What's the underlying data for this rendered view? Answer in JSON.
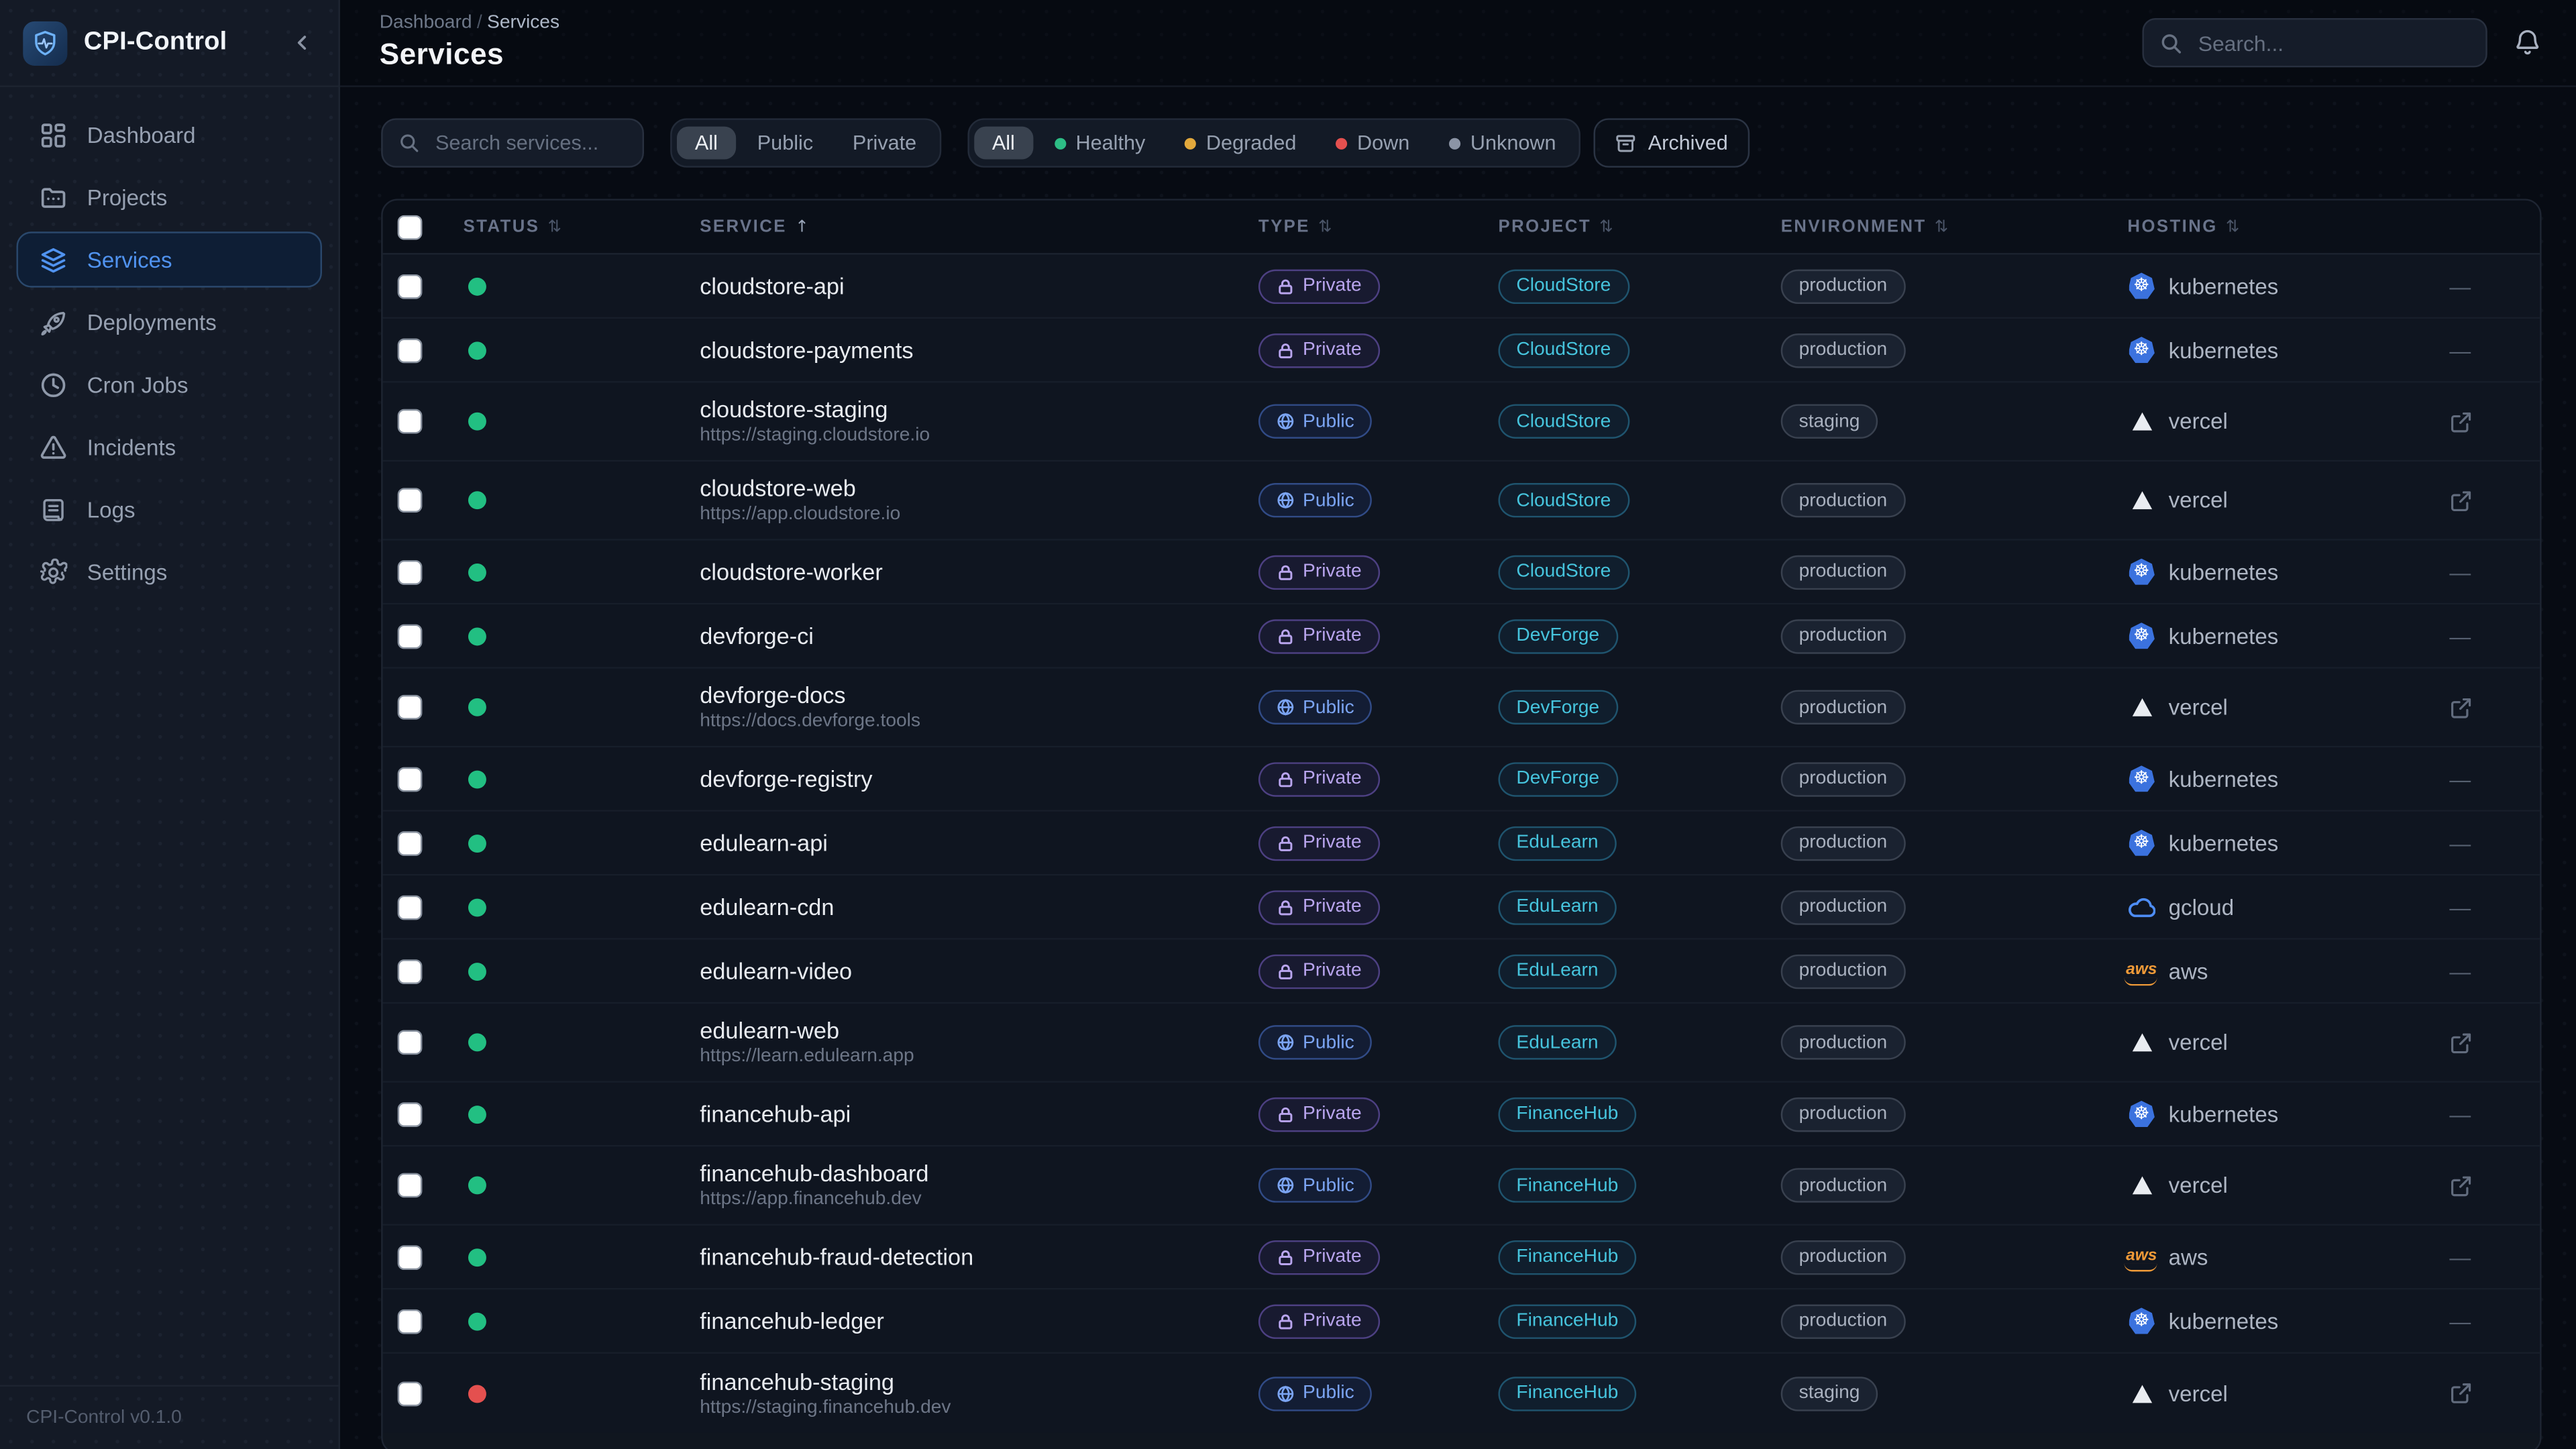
{
  "brand": "CPI-Control",
  "sidebar": {
    "items": [
      {
        "label": "Dashboard",
        "icon": "dashboard-icon",
        "active": false
      },
      {
        "label": "Projects",
        "icon": "projects-icon",
        "active": false
      },
      {
        "label": "Services",
        "icon": "services-icon",
        "active": true
      },
      {
        "label": "Deployments",
        "icon": "deployments-icon",
        "active": false
      },
      {
        "label": "Cron Jobs",
        "icon": "cron-jobs-icon",
        "active": false
      },
      {
        "label": "Incidents",
        "icon": "incidents-icon",
        "active": false
      },
      {
        "label": "Logs",
        "icon": "logs-icon",
        "active": false
      },
      {
        "label": "Settings",
        "icon": "settings-icon",
        "active": false
      }
    ],
    "version": "CPI-Control v0.1.0"
  },
  "header": {
    "breadcrumb": {
      "parent": "Dashboard",
      "separator": "/",
      "current": "Services"
    },
    "title": "Services",
    "search_placeholder": "Search..."
  },
  "filters": {
    "search_placeholder": "Search services...",
    "visibility": {
      "options": [
        "All",
        "Public",
        "Private"
      ],
      "selected": "All"
    },
    "status": {
      "options": [
        {
          "label": "All",
          "dot": null
        },
        {
          "label": "Healthy",
          "dot": "#2dbd85"
        },
        {
          "label": "Degraded",
          "dot": "#e3a93c"
        },
        {
          "label": "Down",
          "dot": "#e4504f"
        },
        {
          "label": "Unknown",
          "dot": "#8b94a5"
        }
      ],
      "selected": "All"
    },
    "archived_label": "Archived"
  },
  "table": {
    "columns": [
      {
        "label": "STATUS",
        "sort": "both"
      },
      {
        "label": "SERVICE",
        "sort": "asc"
      },
      {
        "label": "TYPE",
        "sort": "both"
      },
      {
        "label": "PROJECT",
        "sort": "both"
      },
      {
        "label": "ENVIRONMENT",
        "sort": "both"
      },
      {
        "label": "HOSTING",
        "sort": "both"
      }
    ],
    "rows": [
      {
        "status": "healthy",
        "name": "cloudstore-api",
        "url": null,
        "type": "Private",
        "project": "CloudStore",
        "environment": "production",
        "hosting": "kubernetes",
        "action": "none"
      },
      {
        "status": "healthy",
        "name": "cloudstore-payments",
        "url": null,
        "type": "Private",
        "project": "CloudStore",
        "environment": "production",
        "hosting": "kubernetes",
        "action": "none"
      },
      {
        "status": "healthy",
        "name": "cloudstore-staging",
        "url": "https://staging.cloudstore.io",
        "type": "Public",
        "project": "CloudStore",
        "environment": "staging",
        "hosting": "vercel",
        "action": "external-link"
      },
      {
        "status": "healthy",
        "name": "cloudstore-web",
        "url": "https://app.cloudstore.io",
        "type": "Public",
        "project": "CloudStore",
        "environment": "production",
        "hosting": "vercel",
        "action": "external-link"
      },
      {
        "status": "healthy",
        "name": "cloudstore-worker",
        "url": null,
        "type": "Private",
        "project": "CloudStore",
        "environment": "production",
        "hosting": "kubernetes",
        "action": "none"
      },
      {
        "status": "healthy",
        "name": "devforge-ci",
        "url": null,
        "type": "Private",
        "project": "DevForge",
        "environment": "production",
        "hosting": "kubernetes",
        "action": "none"
      },
      {
        "status": "healthy",
        "name": "devforge-docs",
        "url": "https://docs.devforge.tools",
        "type": "Public",
        "project": "DevForge",
        "environment": "production",
        "hosting": "vercel",
        "action": "external-link"
      },
      {
        "status": "healthy",
        "name": "devforge-registry",
        "url": null,
        "type": "Private",
        "project": "DevForge",
        "environment": "production",
        "hosting": "kubernetes",
        "action": "none"
      },
      {
        "status": "healthy",
        "name": "edulearn-api",
        "url": null,
        "type": "Private",
        "project": "EduLearn",
        "environment": "production",
        "hosting": "kubernetes",
        "action": "none"
      },
      {
        "status": "healthy",
        "name": "edulearn-cdn",
        "url": null,
        "type": "Private",
        "project": "EduLearn",
        "environment": "production",
        "hosting": "gcloud",
        "action": "none"
      },
      {
        "status": "healthy",
        "name": "edulearn-video",
        "url": null,
        "type": "Private",
        "project": "EduLearn",
        "environment": "production",
        "hosting": "aws",
        "action": "none"
      },
      {
        "status": "healthy",
        "name": "edulearn-web",
        "url": "https://learn.edulearn.app",
        "type": "Public",
        "project": "EduLearn",
        "environment": "production",
        "hosting": "vercel",
        "action": "external-link"
      },
      {
        "status": "healthy",
        "name": "financehub-api",
        "url": null,
        "type": "Private",
        "project": "FinanceHub",
        "environment": "production",
        "hosting": "kubernetes",
        "action": "none"
      },
      {
        "status": "healthy",
        "name": "financehub-dashboard",
        "url": "https://app.financehub.dev",
        "type": "Public",
        "project": "FinanceHub",
        "environment": "production",
        "hosting": "vercel",
        "action": "external-link"
      },
      {
        "status": "healthy",
        "name": "financehub-fraud-detection",
        "url": null,
        "type": "Private",
        "project": "FinanceHub",
        "environment": "production",
        "hosting": "aws",
        "action": "none"
      },
      {
        "status": "healthy",
        "name": "financehub-ledger",
        "url": null,
        "type": "Private",
        "project": "FinanceHub",
        "environment": "production",
        "hosting": "kubernetes",
        "action": "none"
      },
      {
        "status": "down",
        "name": "financehub-staging",
        "url": "https://staging.financehub.dev",
        "type": "Public",
        "project": "FinanceHub",
        "environment": "staging",
        "hosting": "vercel",
        "action": "external-link"
      }
    ],
    "hosting_labels": {
      "kubernetes": "kubernetes",
      "vercel": "vercel",
      "gcloud": "gcloud",
      "aws": "aws"
    },
    "empty_action": "—"
  },
  "colors": {
    "accent": "#5093f0",
    "healthy": "#22bf82",
    "down": "#e4504f",
    "degraded": "#e3a93c",
    "unknown": "#8b94a5",
    "kubernetes_blue": "#3b72de",
    "aws_orange": "#f19b38",
    "gcloud_blue": "#4e8df5"
  }
}
